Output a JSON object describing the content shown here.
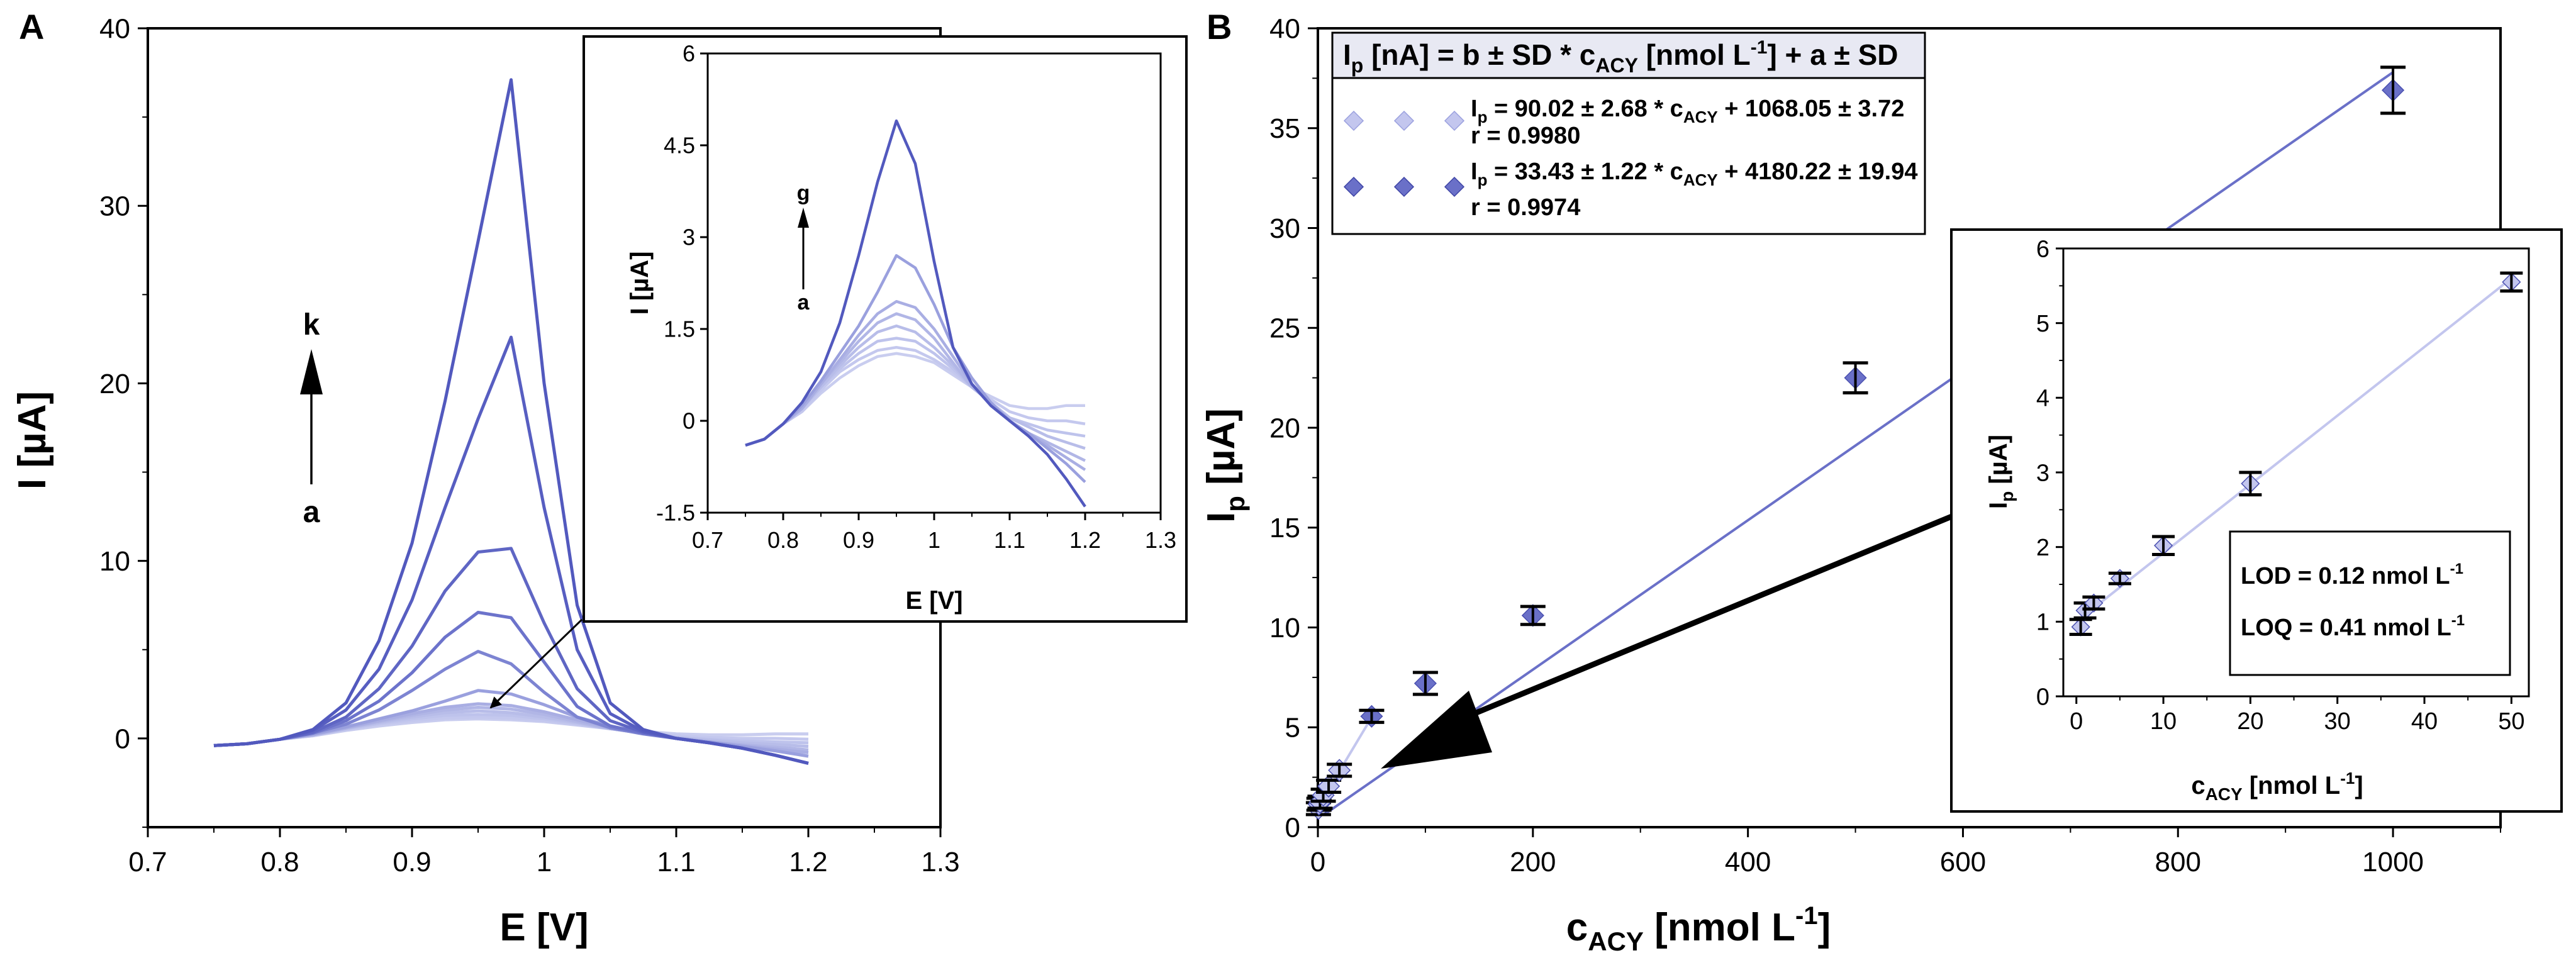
{
  "panels": {
    "a": "A",
    "b": "B"
  },
  "chart_data": [
    {
      "id": "main-voltammogram",
      "type": "line",
      "xlabel": "E [V]",
      "ylabel": "I [µA]",
      "xlim": [
        0.7,
        1.3
      ],
      "ylim": [
        -5,
        40
      ],
      "xticks": [
        "0.7",
        "0.8",
        "0.9",
        "1",
        "1.1",
        "1.2",
        "1.3"
      ],
      "yticks": [
        "0",
        "10",
        "20",
        "30",
        "40"
      ],
      "direction_arrow": {
        "from": "a",
        "to": "k"
      },
      "x": [
        0.75,
        0.775,
        0.8,
        0.825,
        0.85,
        0.875,
        0.9,
        0.925,
        0.95,
        0.975,
        1.0,
        1.025,
        1.05,
        1.075,
        1.1,
        1.125,
        1.15,
        1.175,
        1.2
      ],
      "series": [
        {
          "values": [
            -0.4,
            -0.3,
            -0.05,
            0.15,
            0.45,
            0.7,
            0.9,
            1.05,
            1.1,
            1.05,
            0.95,
            0.75,
            0.55,
            0.4,
            0.25,
            0.2,
            0.2,
            0.25,
            0.25
          ],
          "color": "#c9cdef"
        },
        {
          "values": [
            -0.4,
            -0.3,
            -0.05,
            0.15,
            0.5,
            0.8,
            1.0,
            1.15,
            1.2,
            1.15,
            1.0,
            0.8,
            0.55,
            0.35,
            0.15,
            0.05,
            0.0,
            0.0,
            -0.05
          ],
          "color": "#c4c8ee"
        },
        {
          "values": [
            -0.4,
            -0.3,
            -0.05,
            0.2,
            0.55,
            0.85,
            1.1,
            1.3,
            1.35,
            1.3,
            1.1,
            0.85,
            0.55,
            0.3,
            0.05,
            -0.05,
            -0.15,
            -0.2,
            -0.25
          ],
          "color": "#bec3ec"
        },
        {
          "values": [
            -0.4,
            -0.3,
            -0.05,
            0.2,
            0.55,
            0.9,
            1.2,
            1.45,
            1.55,
            1.45,
            1.2,
            0.9,
            0.55,
            0.3,
            0.05,
            -0.1,
            -0.25,
            -0.35,
            -0.45
          ],
          "color": "#b8bde9"
        },
        {
          "values": [
            -0.4,
            -0.3,
            -0.05,
            0.2,
            0.6,
            0.95,
            1.3,
            1.6,
            1.75,
            1.65,
            1.35,
            0.95,
            0.55,
            0.3,
            0.0,
            -0.2,
            -0.35,
            -0.5,
            -0.65
          ],
          "color": "#b1b6e6"
        },
        {
          "values": [
            -0.4,
            -0.3,
            -0.05,
            0.2,
            0.6,
            1.0,
            1.4,
            1.75,
            1.95,
            1.85,
            1.5,
            1.05,
            0.6,
            0.3,
            0.0,
            -0.2,
            -0.4,
            -0.6,
            -0.8
          ],
          "color": "#a9aee3"
        },
        {
          "values": [
            -0.4,
            -0.3,
            -0.05,
            0.25,
            0.65,
            1.1,
            1.55,
            2.1,
            2.7,
            2.5,
            1.9,
            1.2,
            0.7,
            0.3,
            0.0,
            -0.2,
            -0.45,
            -0.7,
            -1.0
          ],
          "color": "#9aa0de"
        },
        {
          "values": [
            -0.4,
            -0.3,
            -0.05,
            0.3,
            0.8,
            1.6,
            2.7,
            3.9,
            4.9,
            4.2,
            2.6,
            1.2,
            0.6,
            0.25,
            0.0,
            -0.25,
            -0.55,
            -0.95,
            -1.4
          ],
          "color": "#7d84d2"
        },
        {
          "values": [
            -0.4,
            -0.3,
            -0.05,
            0.3,
            1.0,
            2.1,
            3.7,
            5.7,
            7.1,
            6.8,
            4.3,
            1.8,
            0.7,
            0.3,
            0.0,
            -0.25,
            -0.55,
            -0.95,
            -1.4
          ],
          "color": "#6c73cb"
        },
        {
          "values": [
            -0.4,
            -0.3,
            -0.05,
            0.35,
            1.2,
            2.8,
            5.2,
            8.3,
            10.5,
            10.7,
            6.5,
            2.8,
            1.0,
            0.35,
            0.0,
            -0.25,
            -0.55,
            -0.95,
            -1.4
          ],
          "color": "#5f66c4"
        },
        {
          "values": [
            -0.4,
            -0.3,
            -0.05,
            0.45,
            1.6,
            3.9,
            7.8,
            13.0,
            18.0,
            22.6,
            13.0,
            5.0,
            1.4,
            0.4,
            0.0,
            -0.25,
            -0.55,
            -0.95,
            -1.4
          ],
          "color": "#575ec1"
        },
        {
          "values": [
            -0.4,
            -0.3,
            -0.05,
            0.5,
            2.0,
            5.5,
            11.0,
            19.0,
            28.0,
            37.1,
            20.0,
            7.5,
            2.0,
            0.5,
            0.0,
            -0.25,
            -0.55,
            -0.95,
            -1.4
          ],
          "color": "#5259be"
        }
      ]
    },
    {
      "id": "inset-voltammogram",
      "type": "line",
      "xlabel": "E [V]",
      "ylabel": "I [µA]",
      "xlim": [
        0.7,
        1.3
      ],
      "ylim": [
        -1.5,
        6
      ],
      "xticks": [
        "0.7",
        "0.8",
        "0.9",
        "1",
        "1.1",
        "1.2",
        "1.3"
      ],
      "yticks": [
        "-1.5",
        "0",
        "1.5",
        "3",
        "4.5",
        "6"
      ],
      "direction_arrow": {
        "from": "a",
        "to": "g"
      },
      "x": [
        0.75,
        0.775,
        0.8,
        0.825,
        0.85,
        0.875,
        0.9,
        0.925,
        0.95,
        0.975,
        1.0,
        1.025,
        1.05,
        1.075,
        1.1,
        1.125,
        1.15,
        1.175,
        1.2
      ],
      "series": [
        {
          "values": [
            -0.4,
            -0.3,
            -0.05,
            0.15,
            0.45,
            0.7,
            0.9,
            1.05,
            1.1,
            1.05,
            0.95,
            0.75,
            0.55,
            0.4,
            0.25,
            0.2,
            0.2,
            0.25,
            0.25
          ],
          "color": "#c9cdef"
        },
        {
          "values": [
            -0.4,
            -0.3,
            -0.05,
            0.15,
            0.5,
            0.8,
            1.0,
            1.15,
            1.2,
            1.15,
            1.0,
            0.8,
            0.55,
            0.35,
            0.15,
            0.05,
            0.0,
            0.0,
            -0.05
          ],
          "color": "#c4c8ee"
        },
        {
          "values": [
            -0.4,
            -0.3,
            -0.05,
            0.2,
            0.55,
            0.85,
            1.1,
            1.3,
            1.35,
            1.3,
            1.1,
            0.85,
            0.55,
            0.3,
            0.05,
            -0.05,
            -0.15,
            -0.2,
            -0.25
          ],
          "color": "#bec3ec"
        },
        {
          "values": [
            -0.4,
            -0.3,
            -0.05,
            0.2,
            0.55,
            0.9,
            1.2,
            1.45,
            1.55,
            1.45,
            1.2,
            0.9,
            0.55,
            0.3,
            0.05,
            -0.1,
            -0.25,
            -0.35,
            -0.45
          ],
          "color": "#b8bde9"
        },
        {
          "values": [
            -0.4,
            -0.3,
            -0.05,
            0.2,
            0.6,
            0.95,
            1.3,
            1.6,
            1.75,
            1.65,
            1.35,
            0.95,
            0.55,
            0.3,
            0.0,
            -0.2,
            -0.35,
            -0.5,
            -0.65
          ],
          "color": "#b1b6e6"
        },
        {
          "values": [
            -0.4,
            -0.3,
            -0.05,
            0.2,
            0.6,
            1.0,
            1.4,
            1.75,
            1.95,
            1.85,
            1.5,
            1.05,
            0.6,
            0.3,
            0.0,
            -0.2,
            -0.4,
            -0.6,
            -0.8
          ],
          "color": "#a9aee3"
        },
        {
          "values": [
            -0.4,
            -0.3,
            -0.05,
            0.25,
            0.65,
            1.1,
            1.55,
            2.1,
            2.7,
            2.5,
            1.9,
            1.2,
            0.7,
            0.3,
            0.0,
            -0.2,
            -0.45,
            -0.7,
            -1.0
          ],
          "color": "#9aa0de"
        },
        {
          "values": [
            -0.4,
            -0.3,
            -0.05,
            0.3,
            0.8,
            1.6,
            2.7,
            3.9,
            4.9,
            4.2,
            2.6,
            1.2,
            0.6,
            0.25,
            0.0,
            -0.25,
            -0.55,
            -0.95,
            -1.4
          ],
          "color": "#5259be"
        }
      ]
    },
    {
      "id": "calibration-main",
      "type": "scatter",
      "xlabel_main": "c",
      "xlabel_sub": "ACY",
      "xlabel_rest": " [nmol L",
      "xlabel_sup": "-1",
      "xlabel_end": "]",
      "ylabel_main": "I",
      "ylabel_sub": "p",
      "ylabel_rest": " [µA]",
      "xlim": [
        0,
        1100
      ],
      "ylim": [
        0,
        40
      ],
      "xticks": [
        "0",
        "200",
        "400",
        "600",
        "800",
        "1000"
      ],
      "yticks": [
        "0",
        "5",
        "10",
        "15",
        "20",
        "25",
        "30",
        "35",
        "40"
      ],
      "fit_line": {
        "x": [
          5,
          1000
        ],
        "y": [
          0.6,
          37.8
        ],
        "color": "#6a70c8"
      },
      "fit_line_low": {
        "x": [
          0,
          50
        ],
        "y": [
          1.0,
          5.5
        ],
        "color": "#c3c6ee"
      },
      "points": [
        {
          "x": 0.5,
          "y": 0.93,
          "err": 0.3,
          "color": "#c3c6ee"
        },
        {
          "x": 1,
          "y": 1.15,
          "err": 0.3,
          "color": "#c3c6ee"
        },
        {
          "x": 2,
          "y": 1.25,
          "err": 0.3,
          "color": "#c3c6ee"
        },
        {
          "x": 5,
          "y": 1.6,
          "err": 0.3,
          "color": "#c3c6ee"
        },
        {
          "x": 10,
          "y": 2.05,
          "err": 0.3,
          "color": "#c3c6ee"
        },
        {
          "x": 20,
          "y": 2.85,
          "err": 0.3,
          "color": "#c3c6ee"
        },
        {
          "x": 50,
          "y": 5.55,
          "err": 0.3,
          "color": "#6a70c8"
        },
        {
          "x": 100,
          "y": 7.2,
          "err": 0.55,
          "color": "#6a70c8"
        },
        {
          "x": 200,
          "y": 10.6,
          "err": 0.45,
          "color": "#6a70c8"
        },
        {
          "x": 500,
          "y": 22.5,
          "err": 0.75,
          "color": "#6a70c8"
        },
        {
          "x": 1000,
          "y": 36.9,
          "err": 1.15,
          "color": "#6a70c8"
        }
      ],
      "legend": {
        "header": {
          "i": "I",
          "p": "p",
          "a": " [nA] = b ± SD * c",
          "acy": "ACY",
          "b": " [nmol L",
          "sup": "-1",
          "c": "] + a ± SD"
        },
        "entries": [
          {
            "color": "#c3c6ee",
            "pre": "I",
            "sub1": "p",
            "mid": " = 90.02 ± 2.68 * c",
            "sub2": "ACY",
            "post": " + 1068.05 ± 3.72",
            "r": "r = 0.9980"
          },
          {
            "color": "#6a70c8",
            "pre": "I",
            "sub1": "p",
            "mid": " = 33.43 ± 1.22 * c",
            "sub2": "ACY",
            "post": " + 4180.22 ± 19.94",
            "r": "r = 0.9974"
          }
        ]
      }
    },
    {
      "id": "calibration-inset",
      "type": "scatter",
      "xlabel_main": "c",
      "xlabel_sub": "ACY",
      "xlabel_rest": " [nmol L",
      "xlabel_sup": "-1",
      "xlabel_end": "]",
      "ylabel_main": "I",
      "ylabel_sub": "p",
      "ylabel_rest": " [µA]",
      "xlim": [
        0,
        50
      ],
      "ylim": [
        0,
        6
      ],
      "xticks": [
        "0",
        "10",
        "20",
        "30",
        "40",
        "50"
      ],
      "yticks": [
        "0",
        "1",
        "2",
        "3",
        "4",
        "5",
        "6"
      ],
      "fit_line": {
        "x": [
          0,
          50
        ],
        "y": [
          1.0,
          5.6
        ],
        "color": "#c3c6ee"
      },
      "points": [
        {
          "x": 0.5,
          "y": 0.93,
          "err": 0.1
        },
        {
          "x": 1,
          "y": 1.15,
          "err": 0.1
        },
        {
          "x": 2,
          "y": 1.25,
          "err": 0.08
        },
        {
          "x": 5,
          "y": 1.58,
          "err": 0.07
        },
        {
          "x": 10,
          "y": 2.02,
          "err": 0.12
        },
        {
          "x": 20,
          "y": 2.85,
          "err": 0.15
        },
        {
          "x": 50,
          "y": 5.55,
          "err": 0.12
        }
      ],
      "lod": {
        "a": "LOD = 0.12 nmol L",
        "sup": "-1"
      },
      "loq": {
        "a": "LOQ = 0.41 nmol L",
        "sup": "-1"
      }
    }
  ]
}
